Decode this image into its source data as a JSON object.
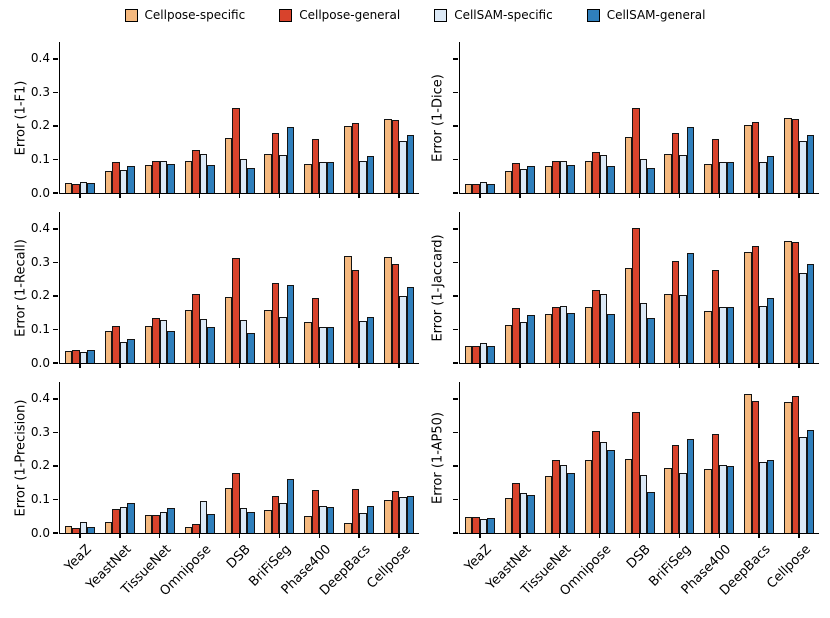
{
  "legend": {
    "items": [
      {
        "label": "Cellpose-specific",
        "color": "#f5b97f"
      },
      {
        "label": "Cellpose-general",
        "color": "#d8432c"
      },
      {
        "label": "CellSAM-specific",
        "color": "#dce9f6"
      },
      {
        "label": "CellSAM-general",
        "color": "#2f7fbc"
      }
    ]
  },
  "chart_data": {
    "type": "bar",
    "variant": "grouped-vertical, 2x3 subplot grid",
    "categories": [
      "YeaZ",
      "YeastNet",
      "TissueNet",
      "Omnipose",
      "DSB",
      "BriFiSeg",
      "Phase400",
      "DeepBacs",
      "Cellpose"
    ],
    "series_names": [
      "Cellpose-specific",
      "Cellpose-general",
      "CellSAM-specific",
      "CellSAM-general"
    ],
    "series_colors": [
      "#f5b97f",
      "#d8432c",
      "#dce9f6",
      "#2f7fbc"
    ],
    "bar_edge_color": "#141414",
    "ylim": [
      0,
      0.45
    ],
    "yticks": [
      "0.0",
      "0.1",
      "0.2",
      "0.3",
      "0.4"
    ],
    "ytick_values": [
      0.0,
      0.1,
      0.2,
      0.3,
      0.4
    ],
    "layout": {
      "grid": "3 rows x 2 cols",
      "legend_position": "top-center horizontal",
      "ytick_labels_left_column_only": true,
      "xtick_labels_bottom_row_only": true,
      "xtick_label_rotation_deg": 45,
      "gridlines": false,
      "spines": "left and bottom only"
    },
    "subplots": [
      {
        "ylabel": "Error (1-F1)",
        "grid_position": "row1-left",
        "series": [
          {
            "name": "Cellpose-specific",
            "values": [
              0.03,
              0.067,
              0.084,
              0.095,
              0.165,
              0.116,
              0.088,
              0.2,
              0.222
            ]
          },
          {
            "name": "Cellpose-general",
            "values": [
              0.028,
              0.093,
              0.097,
              0.127,
              0.252,
              0.18,
              0.162,
              0.21,
              0.219
            ]
          },
          {
            "name": "CellSAM-specific",
            "values": [
              0.034,
              0.07,
              0.097,
              0.116,
              0.102,
              0.114,
              0.093,
              0.095,
              0.156
            ]
          },
          {
            "name": "CellSAM-general",
            "values": [
              0.029,
              0.081,
              0.086,
              0.083,
              0.076,
              0.198,
              0.093,
              0.11,
              0.173
            ]
          }
        ]
      },
      {
        "ylabel": "Error (1-Dice)",
        "grid_position": "row1-right",
        "series": [
          {
            "name": "Cellpose-specific",
            "values": [
              0.028,
              0.065,
              0.082,
              0.096,
              0.167,
              0.115,
              0.087,
              0.202,
              0.223
            ]
          },
          {
            "name": "Cellpose-general",
            "values": [
              0.026,
              0.09,
              0.095,
              0.122,
              0.253,
              0.18,
              0.161,
              0.211,
              0.22
            ]
          },
          {
            "name": "CellSAM-specific",
            "values": [
              0.032,
              0.071,
              0.095,
              0.113,
              0.101,
              0.114,
              0.094,
              0.094,
              0.155
            ]
          },
          {
            "name": "CellSAM-general",
            "values": [
              0.028,
              0.08,
              0.084,
              0.082,
              0.075,
              0.197,
              0.092,
              0.11,
              0.172
            ]
          }
        ]
      },
      {
        "ylabel": "Error (1-Recall)",
        "grid_position": "row2-left",
        "series": [
          {
            "name": "Cellpose-specific",
            "values": [
              0.037,
              0.095,
              0.11,
              0.158,
              0.196,
              0.157,
              0.122,
              0.32,
              0.316
            ]
          },
          {
            "name": "Cellpose-general",
            "values": [
              0.04,
              0.11,
              0.135,
              0.206,
              0.313,
              0.239,
              0.194,
              0.278,
              0.295
            ]
          },
          {
            "name": "CellSAM-specific",
            "values": [
              0.033,
              0.063,
              0.127,
              0.132,
              0.127,
              0.137,
              0.108,
              0.124,
              0.2
            ]
          },
          {
            "name": "CellSAM-general",
            "values": [
              0.038,
              0.071,
              0.097,
              0.107,
              0.089,
              0.232,
              0.108,
              0.137,
              0.228
            ]
          }
        ]
      },
      {
        "ylabel": "Error (1-Jaccard)",
        "grid_position": "row2-right",
        "series": [
          {
            "name": "Cellpose-specific",
            "values": [
              0.052,
              0.114,
              0.146,
              0.167,
              0.284,
              0.205,
              0.155,
              0.331,
              0.365
            ]
          },
          {
            "name": "Cellpose-general",
            "values": [
              0.05,
              0.163,
              0.168,
              0.217,
              0.402,
              0.304,
              0.276,
              0.348,
              0.36
            ]
          },
          {
            "name": "CellSAM-specific",
            "values": [
              0.059,
              0.122,
              0.17,
              0.205,
              0.18,
              0.203,
              0.167,
              0.17,
              0.269
            ]
          },
          {
            "name": "CellSAM-general",
            "values": [
              0.05,
              0.143,
              0.15,
              0.145,
              0.135,
              0.328,
              0.167,
              0.193,
              0.294
            ]
          }
        ]
      },
      {
        "ylabel": "Error (1-Precision)",
        "grid_position": "row3-left",
        "series": [
          {
            "name": "Cellpose-specific",
            "values": [
              0.022,
              0.034,
              0.055,
              0.018,
              0.134,
              0.07,
              0.05,
              0.031,
              0.099
            ]
          },
          {
            "name": "Cellpose-general",
            "values": [
              0.015,
              0.072,
              0.055,
              0.028,
              0.178,
              0.111,
              0.127,
              0.13,
              0.124
            ]
          },
          {
            "name": "CellSAM-specific",
            "values": [
              0.034,
              0.077,
              0.064,
              0.097,
              0.074,
              0.091,
              0.08,
              0.061,
              0.106
            ]
          },
          {
            "name": "CellSAM-general",
            "values": [
              0.019,
              0.091,
              0.076,
              0.057,
              0.063,
              0.161,
              0.077,
              0.081,
              0.11
            ]
          }
        ]
      },
      {
        "ylabel": "Error (1-AP50)",
        "grid_position": "row3-right",
        "series": [
          {
            "name": "Cellpose-specific",
            "values": [
              0.047,
              0.105,
              0.171,
              0.218,
              0.222,
              0.193,
              0.19,
              0.413,
              0.39
            ]
          },
          {
            "name": "Cellpose-general",
            "values": [
              0.048,
              0.149,
              0.217,
              0.303,
              0.36,
              0.262,
              0.295,
              0.395,
              0.408
            ]
          },
          {
            "name": "CellSAM-specific",
            "values": [
              0.042,
              0.119,
              0.204,
              0.272,
              0.174,
              0.179,
              0.204,
              0.211,
              0.286
            ]
          },
          {
            "name": "CellSAM-general",
            "values": [
              0.046,
              0.112,
              0.179,
              0.247,
              0.122,
              0.279,
              0.201,
              0.218,
              0.307
            ]
          }
        ]
      }
    ]
  }
}
